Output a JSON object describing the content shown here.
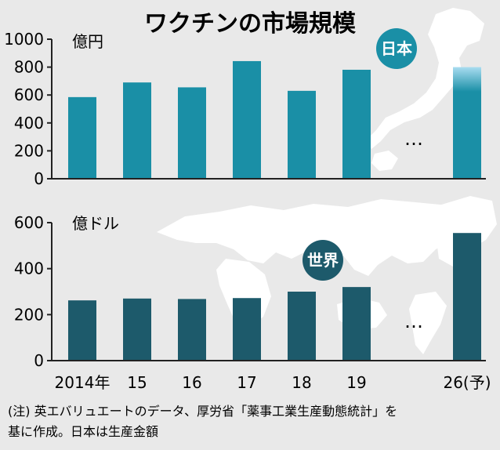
{
  "colors": {
    "background": "#e9e9e9",
    "map": "#ffffff",
    "japan_bar": "#1a8fa6",
    "japan_forecast_top": "#a9dcf0",
    "world_bar": "#1d5a6b",
    "badge_japan": "#1a8fa6",
    "badge_world": "#1d5a6b",
    "axis": "#222222"
  },
  "chart_data": [
    {
      "type": "bar",
      "title": "ワクチンの市場規模",
      "badge": "日本",
      "ylabel": "億円",
      "ylim": [
        0,
        1000
      ],
      "yticks": [
        "0",
        "200",
        "400",
        "600",
        "800",
        "1000"
      ],
      "categories": [
        "2014",
        "15",
        "16",
        "17",
        "18",
        "19",
        "26"
      ],
      "values": [
        585,
        690,
        655,
        843,
        630,
        781,
        800
      ],
      "forecast_index": 6,
      "ellipsis": "…"
    },
    {
      "type": "bar",
      "badge": "世界",
      "ylabel": "億ドル",
      "ylim": [
        0,
        600
      ],
      "yticks": [
        "0",
        "200",
        "400",
        "600"
      ],
      "categories": [
        "2014",
        "15",
        "16",
        "17",
        "18",
        "19",
        "26"
      ],
      "values": [
        262,
        270,
        268,
        272,
        300,
        320,
        555
      ],
      "forecast_index": 6,
      "ellipsis": "…"
    }
  ],
  "x_tick_labels": [
    "2014年",
    "15",
    "16",
    "17",
    "18",
    "19",
    "26(予)"
  ],
  "note_lines": [
    "(注) 英エバリュエートのデータ、厚労省「薬事工業生産動態統計」を",
    "基に作成。日本は生産金額"
  ]
}
